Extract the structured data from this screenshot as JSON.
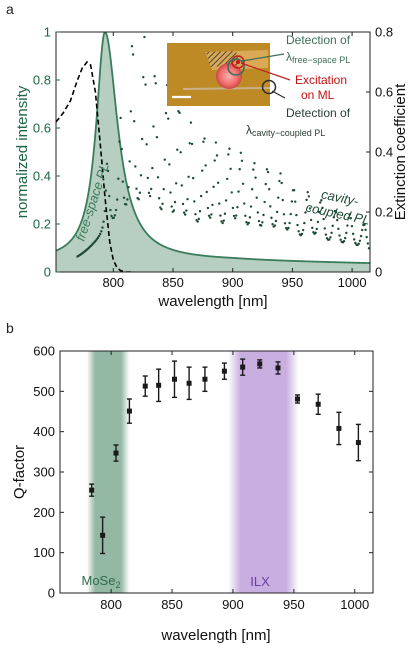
{
  "chart_data": [
    {
      "panel_label": "a",
      "type": "line",
      "xlabel": "wavelength [nm]",
      "ylabel_left": "normalized intensity",
      "ylabel_right": "Extinction coefficient",
      "xlim": [
        752,
        1015
      ],
      "ylim_left": [
        0,
        1
      ],
      "ylim_right": [
        0,
        0.8
      ],
      "xticks": [
        800,
        850,
        900,
        950,
        1000
      ],
      "yticks_left": [
        0,
        0.2,
        0.4,
        0.6,
        0.8,
        1
      ],
      "yticks_right": [
        0,
        0.2,
        0.4,
        0.6,
        0.8
      ],
      "annotations": {
        "free_space": "free-space PL",
        "cavity_line1": "cavity-",
        "cavity_line2": "coupled PL",
        "det_free_prefix": "Detection of",
        "det_free_lambda": "λ",
        "det_free_sub": "free−space PL",
        "excitation_line1": "Excitation",
        "excitation_line2": "on ML",
        "det_cav_prefix": "Detection of",
        "det_cav_lambda": "λ",
        "det_cav_sub": "cavity−coupled PL"
      },
      "series": [
        {
          "role": "free-space PL (filled area)",
          "color": "#3a7d5a",
          "peak_x": 793,
          "peak_y": 1.0
        },
        {
          "role": "cavity-coupled PL (dots)",
          "color": "#1d4a32",
          "peaks": [
            {
              "x": 795,
              "y": 0.44
            },
            {
              "x": 806,
              "y": 0.6
            },
            {
              "x": 816,
              "y": 0.93
            },
            {
              "x": 826,
              "y": 0.91
            },
            {
              "x": 835,
              "y": 0.77
            },
            {
              "x": 845,
              "y": 0.71
            },
            {
              "x": 855,
              "y": 0.63
            },
            {
              "x": 865,
              "y": 0.56
            },
            {
              "x": 876,
              "y": 0.51
            },
            {
              "x": 886,
              "y": 0.48
            },
            {
              "x": 897,
              "y": 0.46
            },
            {
              "x": 907,
              "y": 0.44
            },
            {
              "x": 918,
              "y": 0.4
            },
            {
              "x": 929,
              "y": 0.38
            },
            {
              "x": 940,
              "y": 0.36
            },
            {
              "x": 951,
              "y": 0.3
            },
            {
              "x": 963,
              "y": 0.29
            },
            {
              "x": 974,
              "y": 0.26
            },
            {
              "x": 986,
              "y": 0.22
            },
            {
              "x": 998,
              "y": 0.21
            },
            {
              "x": 1010,
              "y": 0.18
            }
          ]
        },
        {
          "role": "extinction coefficient (dashed, right axis)",
          "color": "#000000",
          "points": [
            [
              752,
              0.5
            ],
            [
              758,
              0.53
            ],
            [
              764,
              0.57
            ],
            [
              770,
              0.64
            ],
            [
              774,
              0.68
            ],
            [
              778,
              0.7
            ],
            [
              781,
              0.69
            ],
            [
              785,
              0.6
            ],
            [
              789,
              0.43
            ],
            [
              793,
              0.25
            ],
            [
              797,
              0.1
            ],
            [
              800,
              0.04
            ],
            [
              803,
              0.015
            ],
            [
              806,
              0.005
            ],
            [
              810,
              0.0
            ],
            [
              815,
              0.0
            ]
          ]
        }
      ]
    },
    {
      "panel_label": "b",
      "type": "scatter",
      "xlabel": "wavelength [nm]",
      "ylabel": "Q-factor",
      "xlim": [
        758,
        1015
      ],
      "ylim": [
        0,
        600
      ],
      "xticks": [
        800,
        850,
        900,
        950,
        1000
      ],
      "yticks": [
        0,
        100,
        200,
        300,
        400,
        500,
        600
      ],
      "bands": [
        {
          "label": "MoSe",
          "subscript": "2",
          "x_range": [
            780,
            815
          ],
          "color": "#3a7d5a"
        },
        {
          "label": "ILX",
          "x_range": [
            896,
            954
          ],
          "color": "#9a6bc8"
        }
      ],
      "points": [
        {
          "x": 784,
          "y": 255,
          "err": 15
        },
        {
          "x": 793,
          "y": 143,
          "err": 45
        },
        {
          "x": 804,
          "y": 347,
          "err": 20
        },
        {
          "x": 815,
          "y": 451,
          "err": 30
        },
        {
          "x": 828,
          "y": 513,
          "err": 25
        },
        {
          "x": 839,
          "y": 515,
          "err": 40
        },
        {
          "x": 852,
          "y": 530,
          "err": 45
        },
        {
          "x": 864,
          "y": 520,
          "err": 40
        },
        {
          "x": 877,
          "y": 530,
          "err": 30
        },
        {
          "x": 893,
          "y": 550,
          "err": 20
        },
        {
          "x": 908,
          "y": 560,
          "err": 20
        },
        {
          "x": 922,
          "y": 568,
          "err": 10
        },
        {
          "x": 937,
          "y": 558,
          "err": 15
        },
        {
          "x": 953,
          "y": 481,
          "err": 10
        },
        {
          "x": 970,
          "y": 468,
          "err": 25
        },
        {
          "x": 987,
          "y": 408,
          "err": 40
        },
        {
          "x": 1003,
          "y": 373,
          "err": 45
        }
      ]
    }
  ]
}
